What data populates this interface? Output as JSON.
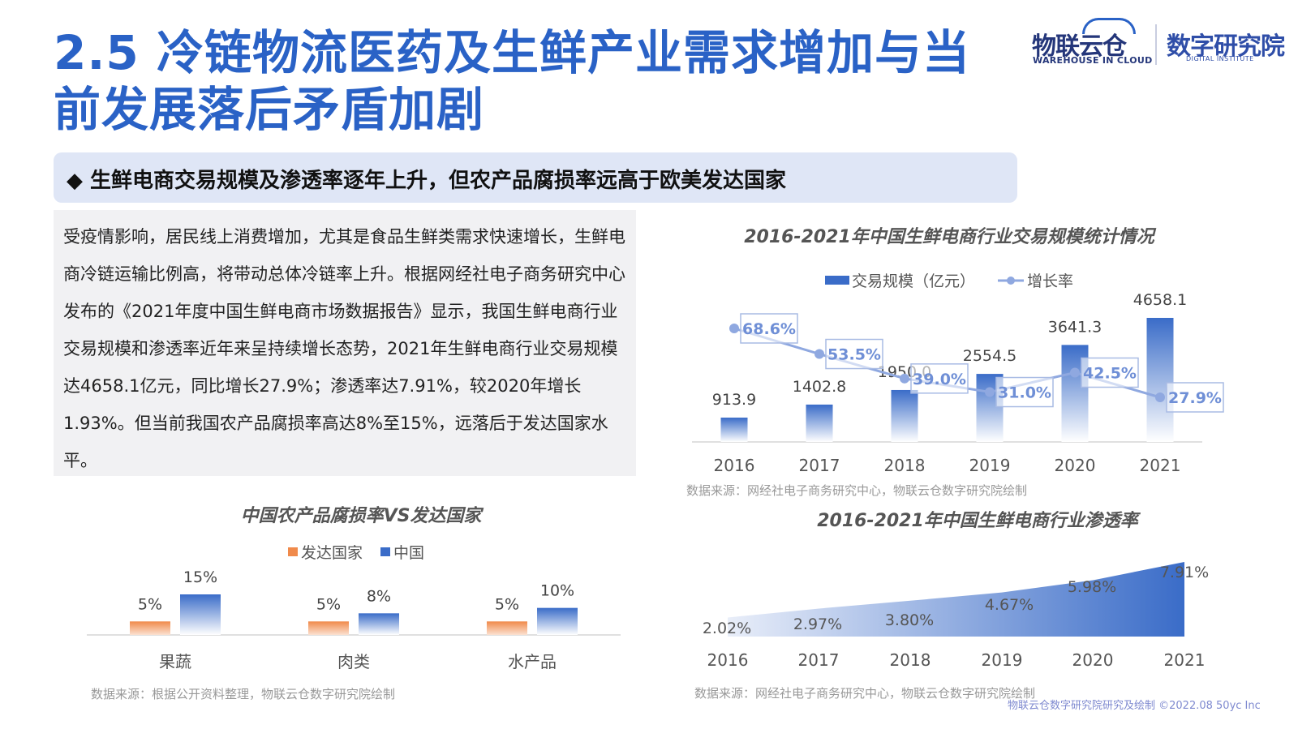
{
  "header": {
    "title_line1": "2.5 冷链物流医药及生鲜产业需求增加与当",
    "title_line2": "前发展落后矛盾加剧",
    "subtitle": "◆ 生鲜电商交易规模及渗透率逐年上升，但农产品腐损率远高于欧美发达国家"
  },
  "logo": {
    "left_text": "物联云仓",
    "left_sub": "WAREHOUSE IN CLOUD",
    "right_text": "数字研究院",
    "right_sub": "DIGITAL INSTITUTE"
  },
  "body_text": "受疫情影响，居民线上消费增加，尤其是食品生鲜类需求快速增长，生鲜电商冷链运输比例高，将带动总体冷链率上升。根据网经社电子商务研究中心发布的《2021年度中国生鲜电商市场数据报告》显示，我国生鲜电商行业交易规模和渗透率近年来呈持续增长态势，2021年生鲜电商行业交易规模达4658.1亿元，同比增长27.9%；渗透率达7.91%，较2020年增长1.93%。但当前我国农产品腐损率高达8%至15%，远落后于发达国家水平。",
  "chart_data": [
    {
      "type": "bar",
      "title": "2016-2021年中国生鲜电商行业交易规模统计情况",
      "categories": [
        "2016",
        "2017",
        "2018",
        "2019",
        "2020",
        "2021"
      ],
      "series": [
        {
          "name": "交易规模（亿元）",
          "values": [
            913.9,
            1402.8,
            1950.0,
            2554.5,
            3641.3,
            4658.1
          ],
          "labels": [
            "913.9",
            "1402.8",
            "1950.0",
            "2554.5",
            "3641.3",
            "4658.1"
          ]
        },
        {
          "name": "增长率",
          "type": "line",
          "values": [
            68.6,
            53.5,
            39.0,
            31.0,
            42.5,
            27.9
          ],
          "labels": [
            "68.6%",
            "53.5%",
            "39.0%",
            "31.0%",
            "42.5%",
            "27.9%"
          ]
        }
      ],
      "legend_position": "top",
      "colors": {
        "bar": "#3a6cc8",
        "line": "#8fa8e0"
      },
      "source": "数据来源：网经社电子商务研究中心，物联云仓数字研究院绘制"
    },
    {
      "type": "area",
      "title": "2016-2021年中国生鲜电商行业渗透率",
      "categories": [
        "2016",
        "2017",
        "2018",
        "2019",
        "2020",
        "2021"
      ],
      "values": [
        2.02,
        2.97,
        3.8,
        4.67,
        5.98,
        7.91
      ],
      "labels": [
        "2.02%",
        "2.97%",
        "3.80%",
        "4.67%",
        "5.98%",
        "7.91%"
      ],
      "colors": {
        "area": "#3a6cc8"
      },
      "source": "数据来源：网经社电子商务研究中心，物联云仓数字研究院绘制"
    },
    {
      "type": "bar",
      "title": "中国农产品腐损率VS发达国家",
      "categories": [
        "果蔬",
        "肉类",
        "水产品"
      ],
      "series": [
        {
          "name": "发达国家",
          "values": [
            5,
            5,
            5
          ],
          "labels": [
            "5%",
            "5%",
            "5%"
          ]
        },
        {
          "name": "中国",
          "values": [
            15,
            8,
            10
          ],
          "labels": [
            "15%",
            "8%",
            "10%"
          ]
        }
      ],
      "legend_position": "top",
      "colors": {
        "发达国家": "#f08a4b",
        "中国": "#3a6cc8"
      },
      "source": "数据来源：根据公开资料整理，物联云仓数字研究院绘制"
    }
  ],
  "footer": "物联云仓数字研究院研究及绘制    ©2022.08 50yc Inc"
}
